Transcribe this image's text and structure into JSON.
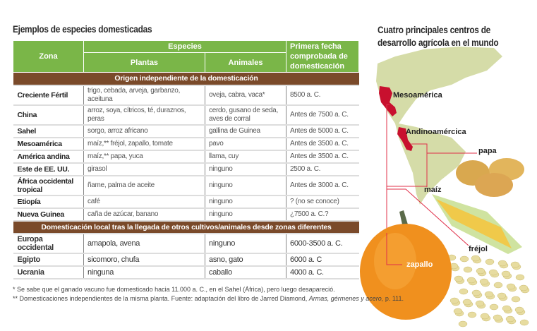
{
  "table_title": "Ejemplos de especies domesticadas",
  "headers": {
    "zona": "Zona",
    "especies": "Especies",
    "plantas": "Plantas",
    "animales": "Animales",
    "fecha": "Primera fecha comprobada de domesticación"
  },
  "section1": "Origen independiente de la domesticación",
  "rows1": [
    [
      "Creciente Fértil",
      "trigo, cebada, arveja, garbanzo, aceituna",
      "oveja, cabra, vaca*",
      "8500 a. C."
    ],
    [
      "China",
      "arroz, soya, cítricos, té, duraznos, peras",
      "cerdo, gusano de seda, aves de corral",
      "Antes de 7500 a. C."
    ],
    [
      "Sahel",
      "sorgo, arroz africano",
      "gallina de Guinea",
      "Antes de 5000 a. C."
    ],
    [
      "Mesoamérica",
      "maíz,** fréjol, zapallo, tomate",
      "pavo",
      "Antes de 3500 a. C."
    ],
    [
      "América andina",
      "maíz,** papa, yuca",
      "llama, cuy",
      "Antes de 3500 a. C."
    ],
    [
      "Este de EE. UU.",
      "girasol",
      "ninguno",
      "2500 a. C."
    ],
    [
      "África occidental tropical",
      "ñame, palma de aceite",
      "ninguno",
      "Antes de 3000 a. C."
    ],
    [
      "Etiopía",
      "café",
      "ninguno",
      "? (no se conoce)"
    ],
    [
      "Nueva Guinea",
      "caña de azúcar, banano",
      "ninguno",
      "¿7500 a. C.?"
    ]
  ],
  "section2": "Domesticación local tras la llegada de otros cultivos/animales desde zonas diferentes",
  "rows2": [
    [
      "Europa occidental",
      "amapola, avena",
      "ninguno",
      "6000-3500 a. C."
    ],
    [
      "Egipto",
      "sicomoro, chufa",
      "asno, gato",
      "6000 a. C"
    ],
    [
      "Ucrania",
      "ninguna",
      "caballo",
      "4000 a. C."
    ]
  ],
  "footnotes": [
    "* Se sabe que el ganado vacuno fue domesticado hacia 11.000 a. C., en el Sahel (África), pero luego desapareció.",
    "** Domesticaciones independientes de la misma planta. Fuente: adaptación del libro de Jarred Diamond,",
    "Armas, gérmenes y acero,",
    " p. 111."
  ],
  "map": {
    "title": "Cuatro principales centros de desarrollo agrícola en el mundo",
    "regions": [
      "Mesoamérica",
      "Andinoamércica"
    ],
    "crops": [
      "papa",
      "maíz",
      "fréjol",
      "zapallo"
    ]
  },
  "colors": {
    "header_green": "#7ab648",
    "section_brown": "#7a4a2a",
    "land": "#d5dca8",
    "highlight": "#c8102e"
  }
}
